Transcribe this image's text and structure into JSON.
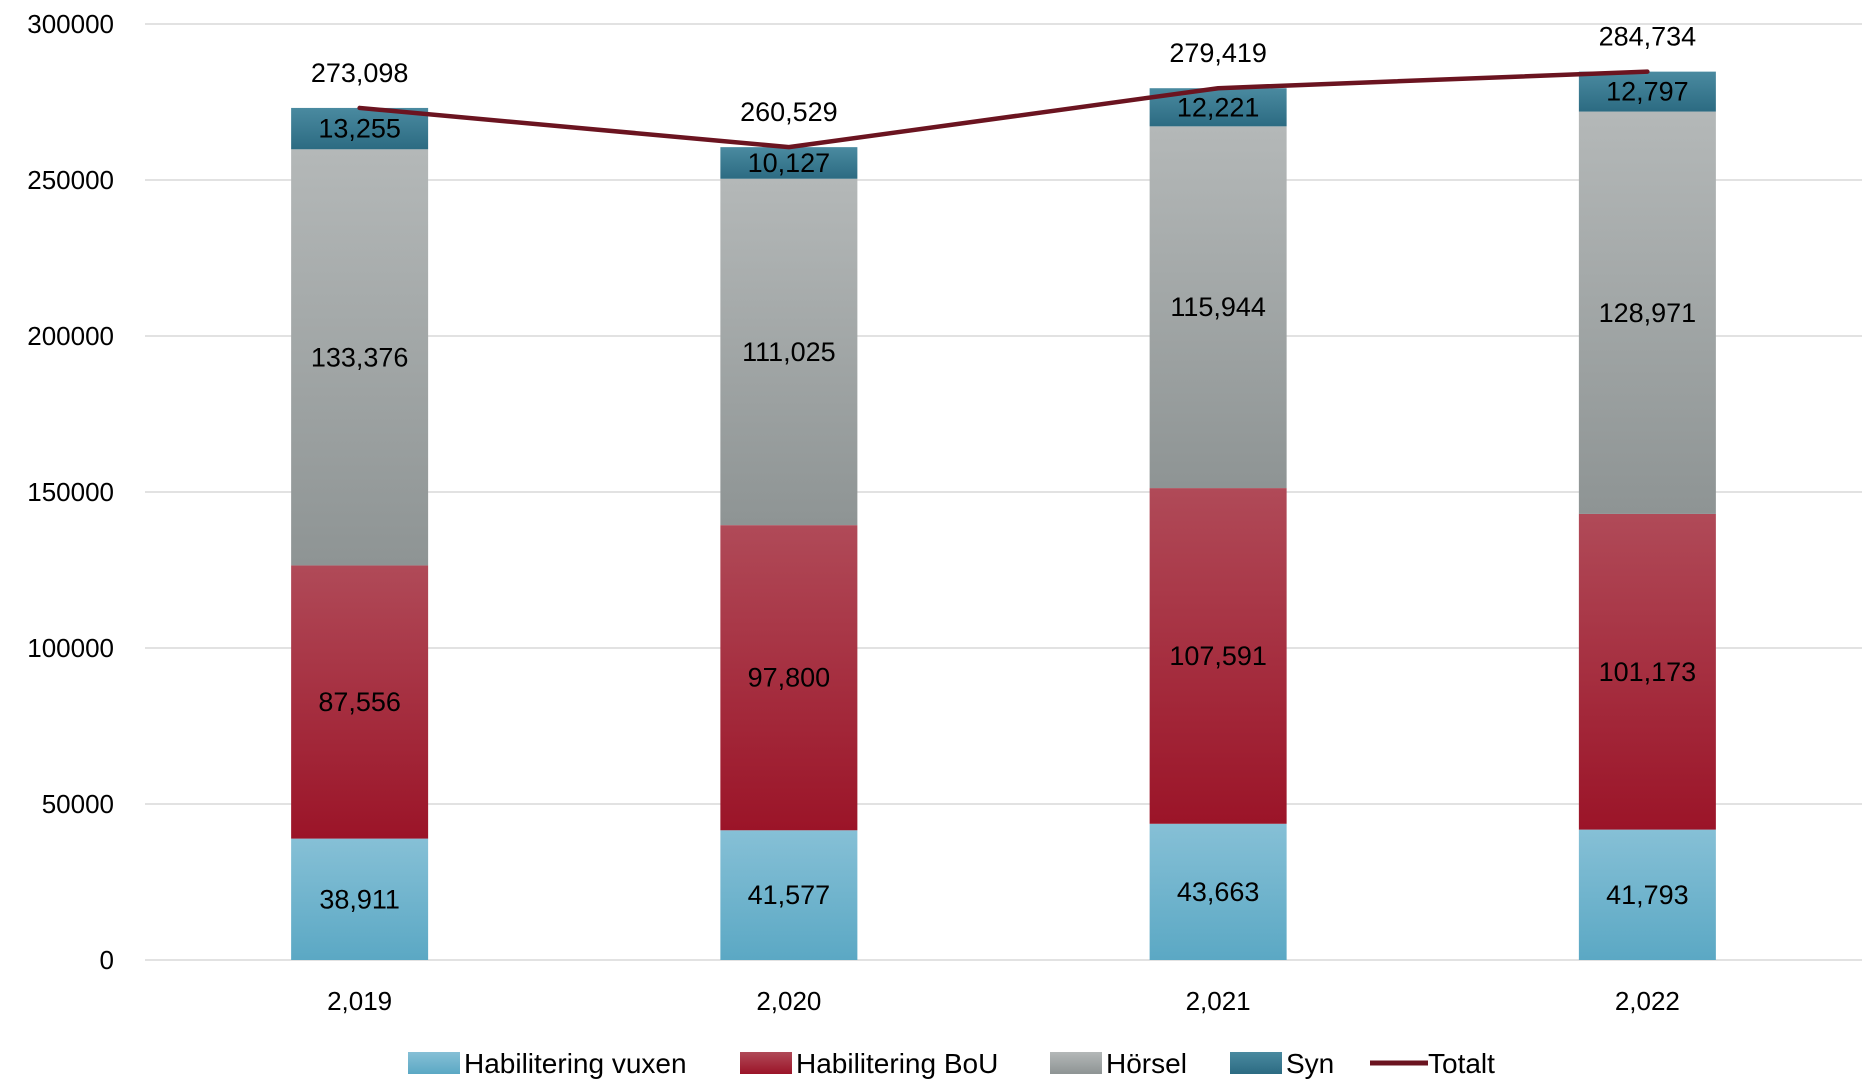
{
  "chart_data": {
    "type": "bar",
    "stacked": true,
    "categories": [
      "2,019",
      "2,020",
      "2,021",
      "2,022"
    ],
    "ylim": [
      0,
      300000
    ],
    "yticks": [
      0,
      50000,
      100000,
      150000,
      200000,
      250000,
      300000
    ],
    "ytick_labels": [
      "0",
      "50000",
      "100000",
      "150000",
      "200000",
      "250000",
      "300000"
    ],
    "grid": true,
    "legend_position": "bottom",
    "series": [
      {
        "name": "Habilitering vuxen",
        "kind": "bar",
        "color": "#5ba8c4",
        "color_light": "#86c0d6",
        "values": [
          38911,
          41577,
          43663,
          41793
        ],
        "labels": [
          "38,911",
          "41,577",
          "43,663",
          "41,793"
        ]
      },
      {
        "name": "Habilitering BoU",
        "kind": "bar",
        "color": "#9b1428",
        "color_light": "#b04a58",
        "values": [
          87556,
          97800,
          107591,
          101173
        ],
        "labels": [
          "87,556",
          "97,800",
          "107,591",
          "101,173"
        ]
      },
      {
        "name": "Hörsel",
        "kind": "bar",
        "color": "#8e9494",
        "color_light": "#b4b8b8",
        "values": [
          133376,
          111025,
          115944,
          128971
        ],
        "labels": [
          "133,376",
          "111,025",
          "115,944",
          "128,971"
        ]
      },
      {
        "name": "Syn",
        "kind": "bar",
        "color": "#2c6b82",
        "color_light": "#4a8aa0",
        "values": [
          13255,
          10127,
          12221,
          12797
        ],
        "labels": [
          "13,255",
          "10,127",
          "12,221",
          "12,797"
        ]
      },
      {
        "name": "Totalt",
        "kind": "line",
        "color": "#6b1420",
        "values": [
          273098,
          260529,
          279419,
          284734
        ],
        "labels": [
          "273,098",
          "260,529",
          "279,419",
          "284,734"
        ]
      }
    ]
  }
}
